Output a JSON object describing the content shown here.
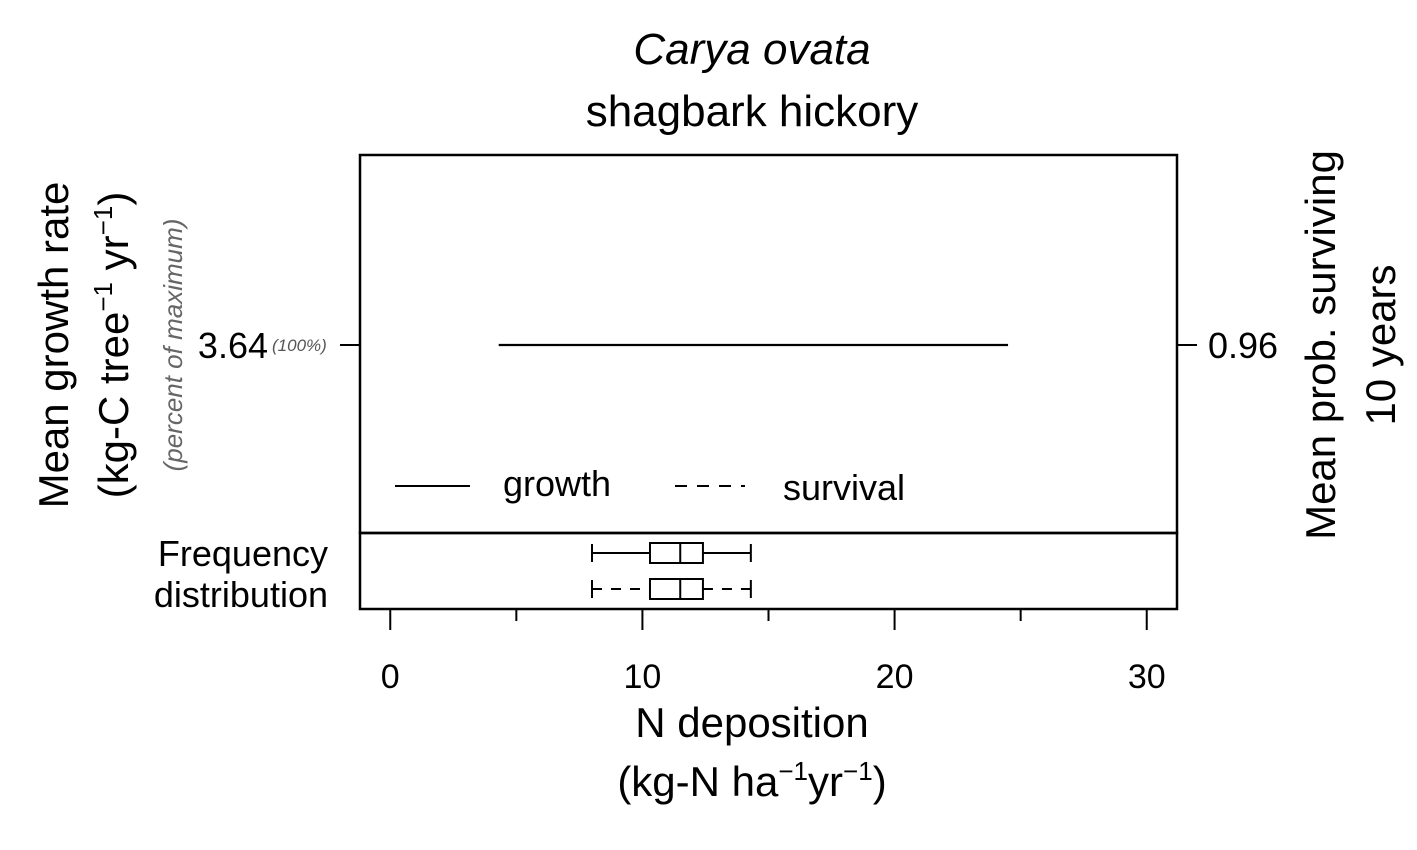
{
  "title": {
    "scientific": "Carya ovata",
    "common": "shagbark hickory"
  },
  "left_axis": {
    "label_line1": "Mean growth rate",
    "label_line2_pre": "(kg-C tree",
    "label_line2_mid": " yr",
    "label_line2_post": ")",
    "superscript": "−1",
    "sublabel": "(percent of maximum)"
  },
  "right_axis": {
    "label_line1": "Mean prob. surviving",
    "label_line2": "10 years"
  },
  "x_axis": {
    "label_line1": "N deposition",
    "label_line2_pre": "(kg-N ha",
    "label_line2_mid": "yr",
    "label_line2_post": ")",
    "superscript": "−1",
    "ticks": [
      "0",
      "10",
      "20",
      "30"
    ]
  },
  "freq_label": {
    "line1": "Frequency",
    "line2": "distribution"
  },
  "growth_value": {
    "value": "3.64",
    "percent": "(100%)"
  },
  "survival_value": {
    "value": "0.96"
  },
  "legend": {
    "growth": "growth",
    "survival": "survival"
  },
  "chart_data": {
    "type": "line",
    "xlim": [
      -1.2,
      31.2
    ],
    "x_ticks": [
      0,
      10,
      20,
      30
    ],
    "x_minor_ticks": [
      5,
      15,
      25
    ],
    "series": [
      {
        "name": "growth",
        "style": "solid",
        "x": [
          4.3,
          24.5
        ],
        "y": [
          3.64,
          3.64
        ]
      },
      {
        "name": "survival",
        "style": "dashed",
        "x": [],
        "y": []
      }
    ],
    "boxplots": [
      {
        "name": "growth",
        "style": "solid",
        "whisker_low": 8.0,
        "q1": 10.3,
        "median": 11.5,
        "q3": 12.4,
        "whisker_high": 14.3
      },
      {
        "name": "survival",
        "style": "dashed",
        "whisker_low": 8.0,
        "q1": 10.3,
        "median": 11.5,
        "q3": 12.4,
        "whisker_high": 14.3
      }
    ],
    "grid": false,
    "legend_position": "bottom-left"
  }
}
